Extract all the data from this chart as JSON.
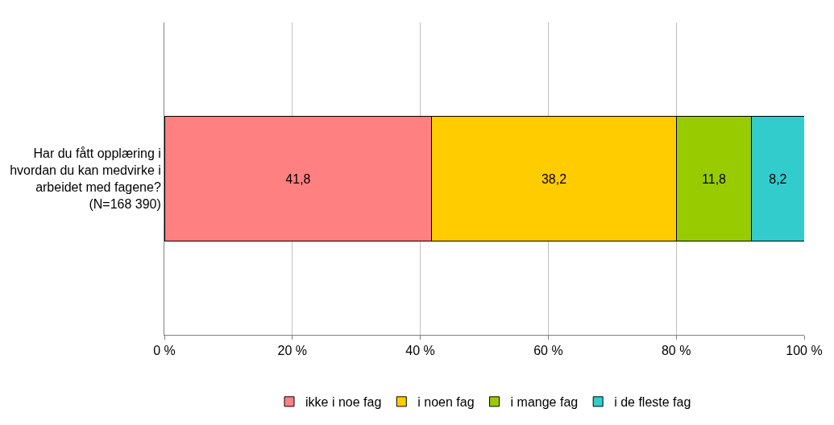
{
  "chart_data": {
    "type": "bar",
    "orientation": "horizontal",
    "stacked": true,
    "categories": [
      "Har du fått opplæring i hvordan du kan medvirke i arbeidet med fagene? (N=168 390)"
    ],
    "series": [
      {
        "name": "ikke i noe fag",
        "color": "#ff8080",
        "values": [
          41.8
        ],
        "value_labels": [
          "41,8"
        ]
      },
      {
        "name": "i noen fag",
        "color": "#ffcc00",
        "values": [
          38.2
        ],
        "value_labels": [
          "38,2"
        ]
      },
      {
        "name": "i mange fag",
        "color": "#99cc00",
        "values": [
          11.8
        ],
        "value_labels": [
          "11,8"
        ]
      },
      {
        "name": "i de fleste fag",
        "color": "#33cccc",
        "values": [
          8.2
        ],
        "value_labels": [
          "8,2"
        ]
      }
    ],
    "xlim": [
      0,
      100
    ],
    "xticks": [
      {
        "value": 0,
        "label": "0 %"
      },
      {
        "value": 20,
        "label": "20 %"
      },
      {
        "value": 40,
        "label": "40 %"
      },
      {
        "value": 60,
        "label": "60 %"
      },
      {
        "value": 80,
        "label": "80 %"
      },
      {
        "value": 100,
        "label": "100 %"
      }
    ],
    "grid": "x",
    "legend": "bottom"
  }
}
